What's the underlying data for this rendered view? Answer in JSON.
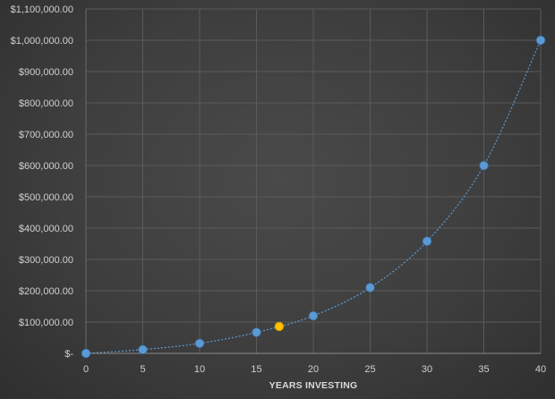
{
  "chart_data": {
    "type": "scatter",
    "title": "",
    "xlabel": "YEARS INVESTING",
    "ylabel": "",
    "xlim": [
      0,
      40
    ],
    "ylim": [
      0,
      1100000
    ],
    "x_ticks": [
      0,
      5,
      10,
      15,
      20,
      25,
      30,
      35,
      40
    ],
    "x_tick_labels": [
      "0",
      "5",
      "10",
      "15",
      "20",
      "25",
      "30",
      "35",
      "40"
    ],
    "y_ticks": [
      0,
      100000,
      200000,
      300000,
      400000,
      500000,
      600000,
      700000,
      800000,
      900000,
      1000000,
      1100000
    ],
    "y_tick_labels": [
      "$-",
      "$100,000.00",
      "$200,000.00",
      "$300,000.00",
      "$400,000.00",
      "$500,000.00",
      "$600,000.00",
      "$700,000.00",
      "$800,000.00",
      "$900,000.00",
      "$1,000,000.00",
      "$1,100,000.00"
    ],
    "grid": true,
    "legend": "none",
    "series": [
      {
        "color": "#5b9bd5",
        "line": "smooth-dotted",
        "x": [
          0,
          5,
          10,
          15,
          20,
          25,
          30,
          35,
          40
        ],
        "y": [
          0,
          12000,
          32000,
          67000,
          120000,
          210000,
          358000,
          600000,
          1000000
        ]
      }
    ],
    "highlight": {
      "x": 17,
      "y": 86000,
      "color": "#ffc000"
    }
  }
}
